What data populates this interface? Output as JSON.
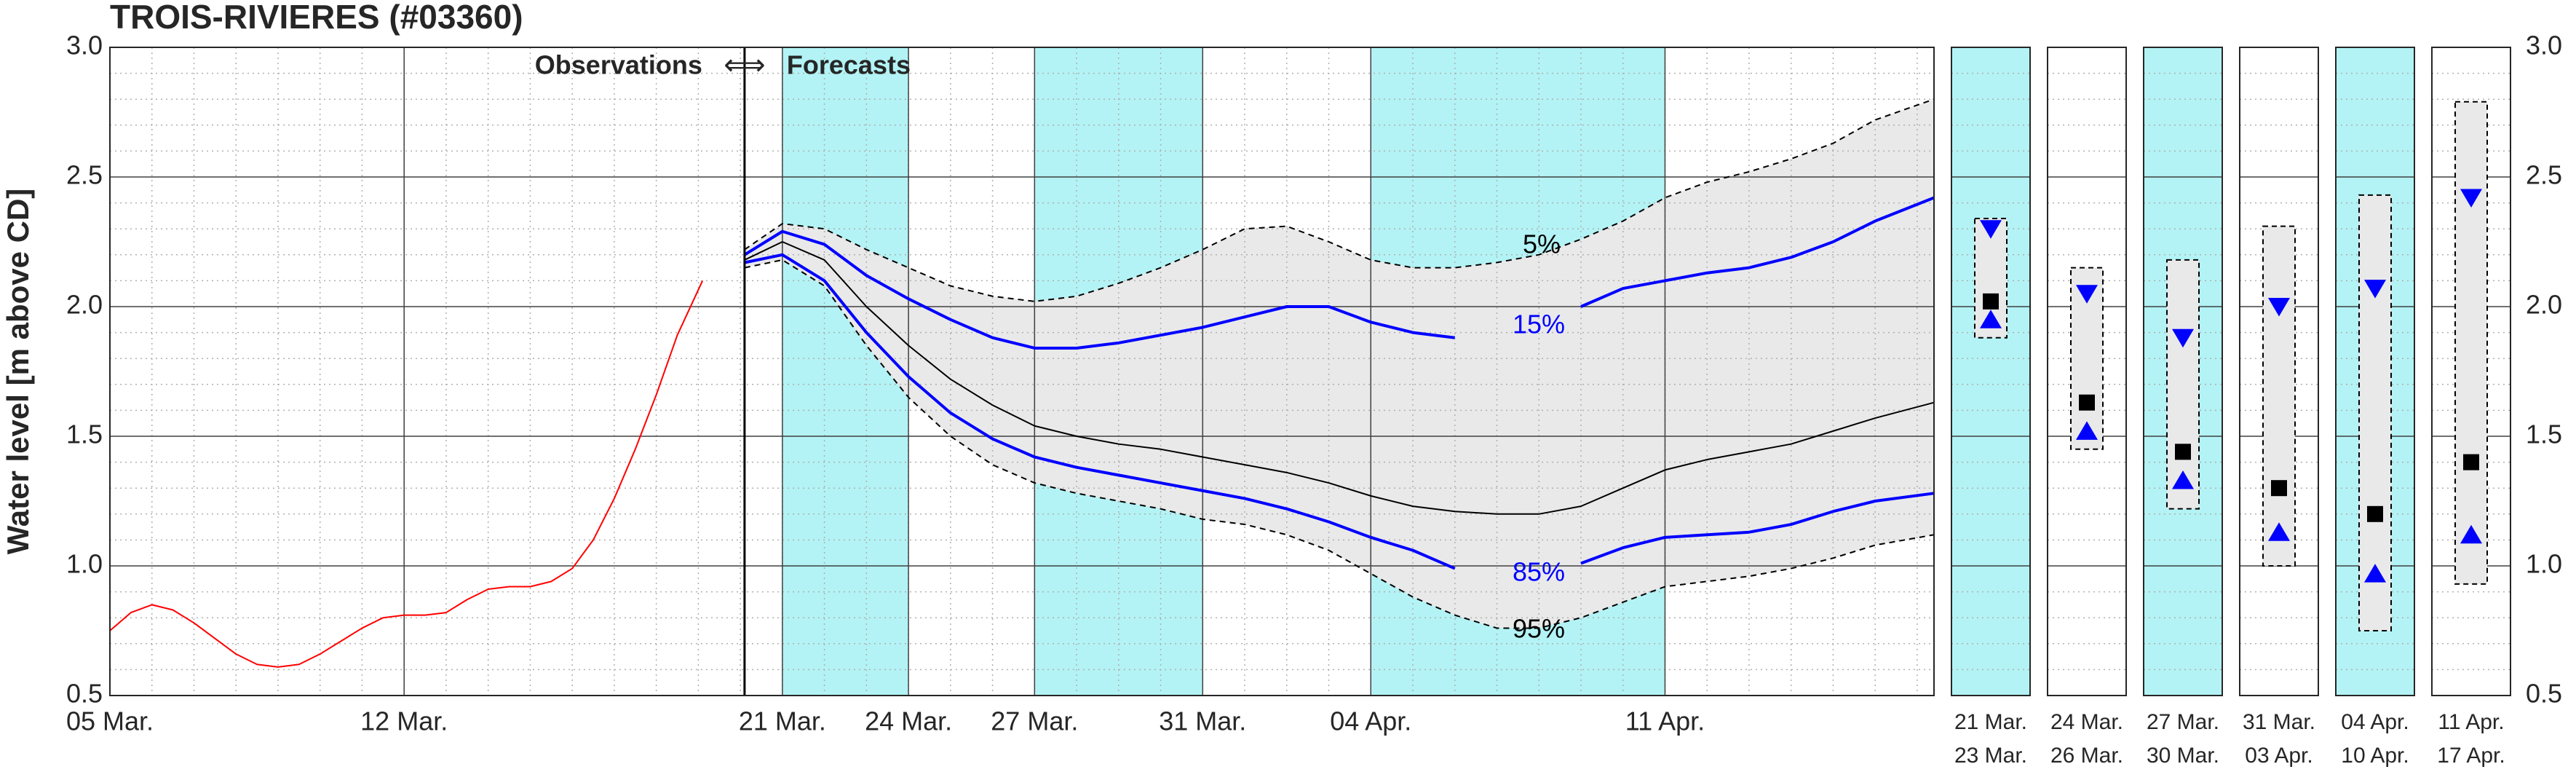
{
  "chart_data": [
    {
      "type": "line",
      "title": "TROIS-RIVIERES (#03360)",
      "ylabel": "Water level [m above CD]",
      "observations_label": "Observations",
      "forecasts_label": "Forecasts",
      "xlim": [
        5,
        48.4
      ],
      "xticks": [
        {
          "value": 5,
          "label": "05 Mar."
        },
        {
          "value": 12,
          "label": "12 Mar."
        },
        {
          "value": 21,
          "label": "21 Mar."
        },
        {
          "value": 24,
          "label": "24 Mar."
        },
        {
          "value": 27,
          "label": "27 Mar."
        },
        {
          "value": 31,
          "label": "31 Mar."
        },
        {
          "value": 35,
          "label": "04 Apr."
        },
        {
          "value": 42,
          "label": "11 Apr."
        }
      ],
      "ylim": [
        0.5,
        3.0
      ],
      "yticks": [
        0.5,
        {
          "value": 1.0,
          "label": "1.0"
        },
        1.5,
        {
          "value": 2.0,
          "label": "2.0"
        },
        2.5,
        {
          "value": 3.0,
          "label": "3.0"
        }
      ],
      "grid": true,
      "highlight_periods": [
        [
          21,
          24
        ],
        [
          27,
          31
        ],
        [
          35,
          42
        ]
      ],
      "highlight_color": "#b3f3f5",
      "band_color": "#e9e9e9",
      "x": [
        20.1,
        21,
        22,
        23,
        24,
        25,
        26,
        27,
        28,
        29,
        30,
        31,
        32,
        33,
        34,
        35,
        36,
        37,
        38,
        39,
        40,
        41,
        42,
        43,
        44,
        45,
        46,
        47,
        48.4
      ],
      "series": [
        {
          "color": "#ff0000",
          "width": 2,
          "x": [
            5,
            5.5,
            6,
            6.5,
            7,
            7.5,
            8,
            8.5,
            9,
            9.5,
            10,
            10.5,
            11,
            11.5,
            12,
            12.5,
            13,
            13.5,
            14,
            14.5,
            15,
            15.5,
            16,
            16.5,
            17,
            17.5,
            18,
            18.5,
            19.1
          ],
          "values": [
            0.75,
            0.82,
            0.85,
            0.83,
            0.78,
            0.72,
            0.66,
            0.62,
            0.61,
            0.62,
            0.66,
            0.71,
            0.76,
            0.8,
            0.81,
            0.81,
            0.82,
            0.87,
            0.91,
            0.92,
            0.92,
            0.94,
            0.99,
            1.1,
            1.26,
            1.45,
            1.66,
            1.89,
            2.1
          ]
        },
        {
          "name": "5%",
          "color": "#000000",
          "width": 2,
          "dash": true,
          "values": [
            2.22,
            2.32,
            2.3,
            2.22,
            2.15,
            2.08,
            2.04,
            2.02,
            2.04,
            2.09,
            2.15,
            2.22,
            2.3,
            2.31,
            2.25,
            2.18,
            2.15,
            2.15,
            2.17,
            2.2,
            2.26,
            2.33,
            2.42,
            2.48,
            2.52,
            2.57,
            2.63,
            2.72,
            2.8
          ]
        },
        {
          "name": "15%",
          "color": "#0000ff",
          "width": 4,
          "values": [
            2.2,
            2.29,
            2.24,
            2.12,
            2.03,
            1.95,
            1.88,
            1.84,
            1.84,
            1.86,
            1.89,
            1.92,
            1.96,
            2.0,
            2.0,
            1.94,
            1.9,
            1.88,
            null,
            null,
            2.0,
            2.07,
            2.1,
            2.13,
            2.15,
            2.19,
            2.25,
            2.33,
            2.42
          ]
        },
        {
          "color": "#000000",
          "width": 2,
          "values": [
            2.18,
            2.25,
            2.18,
            2.0,
            1.85,
            1.72,
            1.62,
            1.54,
            1.5,
            1.47,
            1.45,
            1.42,
            1.39,
            1.36,
            1.32,
            1.27,
            1.23,
            1.21,
            1.2,
            1.2,
            1.23,
            1.3,
            1.37,
            1.41,
            1.44,
            1.47,
            1.52,
            1.57,
            1.63
          ]
        },
        {
          "name": "85%",
          "color": "#0000ff",
          "width": 4,
          "values": [
            2.17,
            2.2,
            2.1,
            1.9,
            1.73,
            1.59,
            1.49,
            1.42,
            1.38,
            1.35,
            1.32,
            1.29,
            1.26,
            1.22,
            1.17,
            1.11,
            1.06,
            0.99,
            null,
            null,
            1.01,
            1.07,
            1.11,
            1.12,
            1.13,
            1.16,
            1.21,
            1.25,
            1.28
          ]
        },
        {
          "name": "95%",
          "color": "#000000",
          "width": 2,
          "dash": true,
          "values": [
            2.15,
            2.18,
            2.08,
            1.85,
            1.65,
            1.5,
            1.39,
            1.32,
            1.28,
            1.25,
            1.22,
            1.18,
            1.16,
            1.12,
            1.06,
            0.97,
            0.88,
            0.81,
            0.76,
            0.76,
            0.8,
            0.86,
            0.92,
            0.94,
            0.96,
            0.99,
            1.03,
            1.08,
            1.12
          ]
        }
      ]
    },
    {
      "type": "range",
      "ylim": [
        0.5,
        3.0
      ],
      "yticks": [
        0.5,
        {
          "value": 1.0,
          "label": "1.0"
        },
        1.5,
        {
          "value": 2.0,
          "label": "2.0"
        },
        2.5,
        {
          "value": 3.0,
          "label": "3.0"
        }
      ],
      "highlight_color": "#b3f3f5",
      "box_color": "#e9e9e9",
      "median_color": "#000000",
      "quantile_color": "#0000ff",
      "periods": [
        {
          "start": "21 Mar.",
          "end": "23 Mar.",
          "highlight": true,
          "min": 1.88,
          "max": 2.34,
          "median": 2.02,
          "upper": 2.3,
          "lower": 1.95
        },
        {
          "start": "24 Mar.",
          "end": "26 Mar.",
          "highlight": false,
          "min": 1.45,
          "max": 2.15,
          "median": 1.63,
          "upper": 2.05,
          "lower": 1.52
        },
        {
          "start": "27 Mar.",
          "end": "30 Mar.",
          "highlight": true,
          "min": 1.22,
          "max": 2.18,
          "median": 1.44,
          "upper": 1.88,
          "lower": 1.33
        },
        {
          "start": "31 Mar.",
          "end": "03 Apr.",
          "highlight": false,
          "min": 1.0,
          "max": 2.31,
          "median": 1.3,
          "upper": 2.0,
          "lower": 1.13
        },
        {
          "start": "04 Apr.",
          "end": "10 Apr.",
          "highlight": true,
          "min": 0.75,
          "max": 2.43,
          "median": 1.2,
          "upper": 2.07,
          "lower": 0.97
        },
        {
          "start": "11 Apr.",
          "end": "17 Apr.",
          "highlight": false,
          "min": 0.93,
          "max": 2.79,
          "median": 1.4,
          "upper": 2.42,
          "lower": 1.12
        }
      ]
    }
  ]
}
